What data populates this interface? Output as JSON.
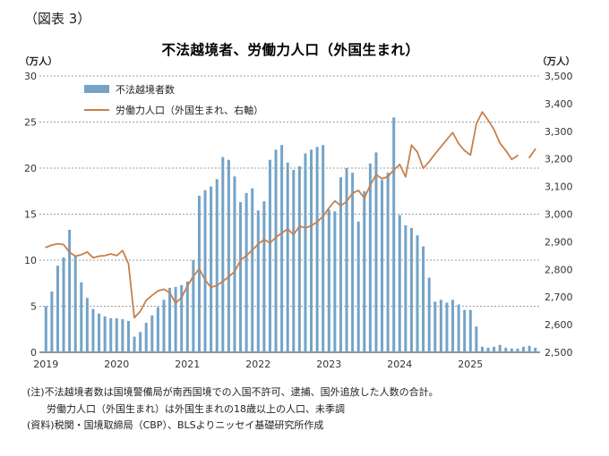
{
  "figure_label": "（図表 3）",
  "colors": {
    "bar": "#74A3C7",
    "line": "#C8804B",
    "grid": "#9e9e9e",
    "axis": "#555555",
    "text": "#333333"
  },
  "chart": {
    "title": "不法越境者、労働力人口（外国生まれ）",
    "left_axis_unit": "（万人）",
    "right_axis_unit": "（万人）",
    "legend": [
      {
        "label": "不法越境者数",
        "type": "bar"
      },
      {
        "label": "労働力人口（外国生まれ、右軸）",
        "type": "line"
      }
    ]
  },
  "chart_data": {
    "type": "bar+line",
    "x_start": "2019-01",
    "x_end": "2025-12",
    "months_total": 84,
    "x_axis": {
      "tick_labels": [
        "2019",
        "2020",
        "2021",
        "2022",
        "2023",
        "2024",
        "2025"
      ],
      "tick_month_indices": [
        0,
        12,
        24,
        36,
        48,
        60,
        72
      ]
    },
    "left_axis": {
      "min": 0,
      "max": 30,
      "step": 5,
      "tick_labels": [
        "0",
        "5",
        "10",
        "15",
        "20",
        "25",
        "30"
      ]
    },
    "right_axis": {
      "min": 2500,
      "max": 3500,
      "step": 100,
      "tick_labels": [
        "2,500",
        "2,600",
        "2,700",
        "2,800",
        "2,900",
        "3,000",
        "3,100",
        "3,200",
        "3,300",
        "3,400",
        "3,500"
      ]
    },
    "grid": "horizontal-dashed",
    "legend_position": "top-left-inside",
    "series": [
      {
        "name": "不法越境者数",
        "type": "bar",
        "axis": "left",
        "values": [
          5.0,
          6.6,
          9.4,
          10.3,
          13.3,
          10.4,
          7.6,
          5.9,
          4.7,
          4.2,
          3.9,
          3.7,
          3.7,
          3.6,
          3.4,
          1.7,
          2.2,
          3.2,
          4.0,
          4.9,
          5.7,
          7.0,
          7.1,
          7.3,
          7.7,
          10.0,
          17.0,
          17.6,
          18.0,
          18.8,
          21.2,
          20.9,
          19.1,
          16.3,
          17.3,
          17.8,
          15.4,
          16.4,
          20.9,
          22.0,
          22.5,
          20.6,
          19.8,
          20.2,
          21.6,
          22.0,
          22.3,
          22.5,
          15.5,
          15.3,
          19.0,
          20.0,
          19.5,
          14.2,
          17.5,
          20.5,
          21.7,
          18.7,
          19.5,
          25.5,
          14.9,
          13.8,
          13.5,
          12.7,
          11.5,
          8.1,
          5.5,
          5.7,
          5.4,
          5.7,
          5.2,
          4.6,
          4.6,
          2.8,
          0.6,
          0.5,
          0.6,
          0.8,
          0.5,
          0.4,
          0.4,
          0.6,
          0.7,
          0.5
        ]
      },
      {
        "name": "労働力人口（外国生まれ、右軸）",
        "type": "line",
        "axis": "right",
        "values": [
          2880,
          2888,
          2893,
          2890,
          2862,
          2848,
          2853,
          2863,
          2842,
          2848,
          2850,
          2856,
          2850,
          2868,
          2820,
          2625,
          2648,
          2688,
          2706,
          2722,
          2728,
          2716,
          2678,
          2698,
          2740,
          2775,
          2802,
          2762,
          2735,
          2742,
          2757,
          2773,
          2792,
          2833,
          2850,
          2870,
          2892,
          2908,
          2896,
          2916,
          2932,
          2946,
          2926,
          2956,
          2950,
          2958,
          2972,
          2992,
          3022,
          3048,
          3030,
          3046,
          3076,
          3086,
          3058,
          3105,
          3143,
          3128,
          3136,
          3160,
          3180,
          3135,
          3250,
          3225,
          3166,
          3190,
          3218,
          3244,
          3270,
          3295,
          3255,
          3230,
          3214,
          3327,
          3370,
          3340,
          3306,
          3257,
          3230,
          3198,
          3212,
          null,
          3205,
          3235
        ]
      }
    ]
  },
  "notes": [
    "(注)不法越境者数は国境警備局が南西国境での入国不許可、逮捕、国外追放した人数の合計。",
    "　　労働力人口（外国生まれ）は外国生まれの18歳以上の人口、未季調",
    "(資料)税関・国境取締局（CBP）、BLSよりニッセイ基礎研究所作成"
  ]
}
